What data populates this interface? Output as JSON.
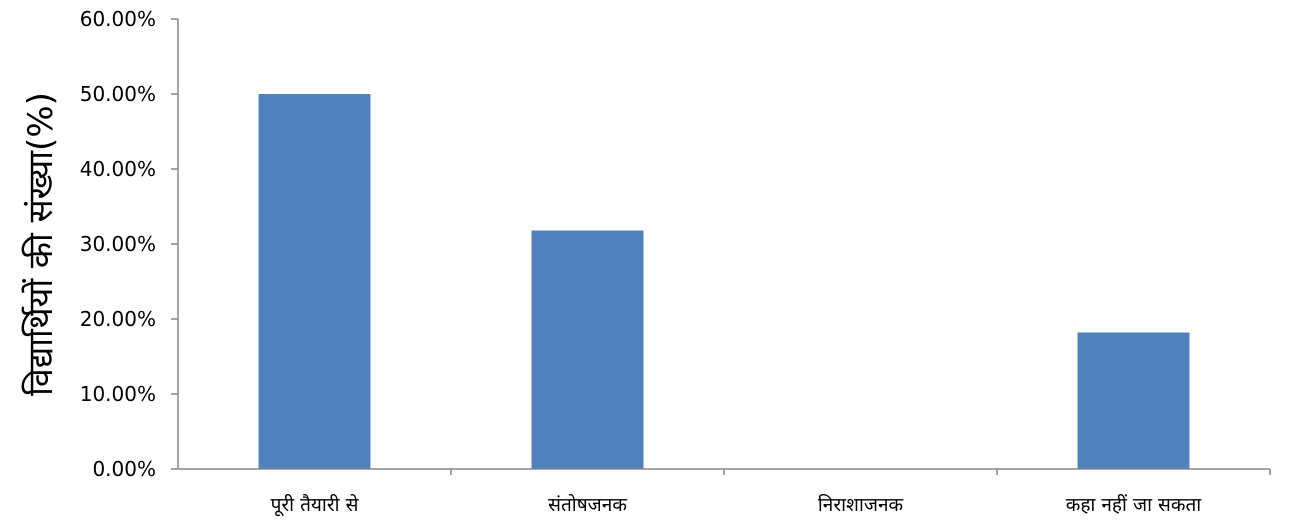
{
  "chart_data": {
    "type": "bar",
    "title": "",
    "xlabel": "",
    "ylabel": "विद्यार्थियों की संख्या(%)",
    "categories": [
      "पूरी तैयारी से",
      "संतोषजनक",
      "निराशाजनक",
      "कहा नहीं जा सकता"
    ],
    "values": [
      50.0,
      31.8,
      0.0,
      18.2
    ],
    "ylim": [
      0,
      60
    ],
    "yticks": [
      "0.00%",
      "10.00%",
      "20.00%",
      "30.00%",
      "40.00%",
      "50.00%",
      "60.00%"
    ],
    "grid": false,
    "legend": "none",
    "bar_color": "#4F81BD",
    "axis_color": "#868686"
  }
}
